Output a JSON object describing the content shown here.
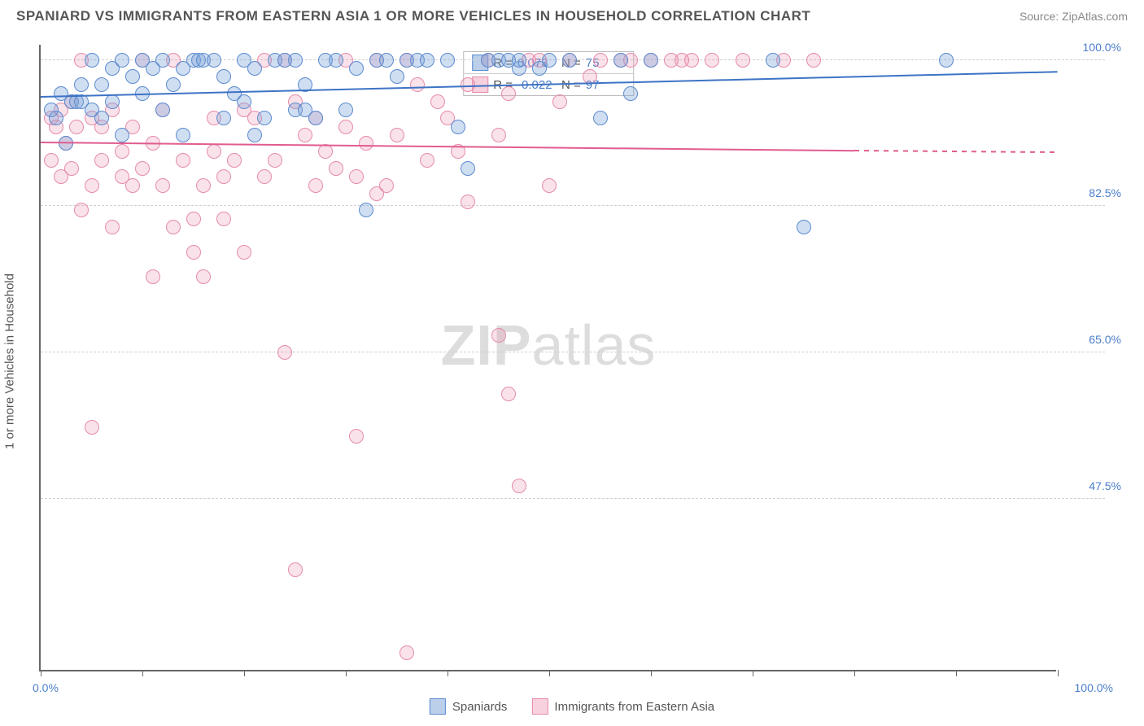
{
  "header": {
    "title": "SPANIARD VS IMMIGRANTS FROM EASTERN ASIA 1 OR MORE VEHICLES IN HOUSEHOLD CORRELATION CHART",
    "source": "Source: ZipAtlas.com"
  },
  "axes": {
    "y_label": "1 or more Vehicles in Household",
    "y_ticks": [
      {
        "value": 100.0,
        "label": "100.0%"
      },
      {
        "value": 82.5,
        "label": "82.5%"
      },
      {
        "value": 65.0,
        "label": "65.0%"
      },
      {
        "value": 47.5,
        "label": "47.5%"
      }
    ],
    "y_domain": [
      27,
      102
    ],
    "x_domain": [
      0,
      100
    ],
    "x_origin_label": "0.0%",
    "x_max_label": "100.0%",
    "x_tick_positions": [
      0,
      10,
      20,
      30,
      40,
      50,
      60,
      70,
      80,
      90,
      100
    ]
  },
  "watermark": {
    "zip": "ZIP",
    "atlas": "atlas"
  },
  "series": {
    "blue": {
      "label": "Spaniards",
      "R": "0.073",
      "N": "75",
      "color_fill": "rgba(120,160,215,0.35)",
      "color_stroke": "#5b8bcf",
      "trend": {
        "x1": 0,
        "y1": 95.5,
        "x2": 100,
        "y2": 98.5,
        "color": "#3d73c5"
      },
      "points": [
        [
          1,
          94
        ],
        [
          1.5,
          93
        ],
        [
          2,
          96
        ],
        [
          2.5,
          90
        ],
        [
          3,
          95
        ],
        [
          3.5,
          95
        ],
        [
          4,
          95
        ],
        [
          4,
          97
        ],
        [
          5,
          100
        ],
        [
          5,
          94
        ],
        [
          6,
          97
        ],
        [
          6,
          93
        ],
        [
          7,
          99
        ],
        [
          7,
          95
        ],
        [
          8,
          100
        ],
        [
          8,
          91
        ],
        [
          9,
          98
        ],
        [
          10,
          96
        ],
        [
          10,
          100
        ],
        [
          11,
          99
        ],
        [
          12,
          100
        ],
        [
          12,
          94
        ],
        [
          13,
          97
        ],
        [
          14,
          99
        ],
        [
          14,
          91
        ],
        [
          15,
          100
        ],
        [
          15.5,
          100
        ],
        [
          16,
          100
        ],
        [
          17,
          100
        ],
        [
          18,
          93
        ],
        [
          18,
          98
        ],
        [
          19,
          96
        ],
        [
          20,
          100
        ],
        [
          20,
          95
        ],
        [
          21,
          99
        ],
        [
          21,
          91
        ],
        [
          22,
          93
        ],
        [
          23,
          100
        ],
        [
          24,
          100
        ],
        [
          25,
          94
        ],
        [
          25,
          100
        ],
        [
          26,
          94
        ],
        [
          26,
          97
        ],
        [
          27,
          93
        ],
        [
          28,
          100
        ],
        [
          29,
          100
        ],
        [
          30,
          94
        ],
        [
          31,
          99
        ],
        [
          32,
          82
        ],
        [
          33,
          100
        ],
        [
          34,
          100
        ],
        [
          35,
          98
        ],
        [
          36,
          100
        ],
        [
          37,
          100
        ],
        [
          38,
          100
        ],
        [
          40,
          100
        ],
        [
          41,
          92
        ],
        [
          42,
          87
        ],
        [
          44,
          100
        ],
        [
          45,
          100
        ],
        [
          46,
          100
        ],
        [
          47,
          99
        ],
        [
          47,
          100
        ],
        [
          49,
          99
        ],
        [
          50,
          100
        ],
        [
          52,
          100
        ],
        [
          55,
          93
        ],
        [
          57,
          100
        ],
        [
          58,
          96
        ],
        [
          60,
          100
        ],
        [
          72,
          100
        ],
        [
          75,
          80
        ],
        [
          89,
          100
        ]
      ]
    },
    "pink": {
      "label": "Immigrants from Eastern Asia",
      "R": "-0.022",
      "N": "97",
      "color_fill": "rgba(235,140,170,0.25)",
      "color_stroke": "#e58bac",
      "trend_solid": {
        "x1": 0,
        "y1": 90,
        "x2": 80,
        "y2": 89,
        "color": "#e15c8f"
      },
      "trend_dashed": {
        "x1": 80,
        "y1": 89,
        "x2": 100,
        "y2": 88.8
      },
      "points": [
        [
          1,
          88
        ],
        [
          1,
          93
        ],
        [
          1.5,
          92
        ],
        [
          2,
          94
        ],
        [
          2,
          86
        ],
        [
          2.5,
          90
        ],
        [
          3,
          95
        ],
        [
          3,
          87
        ],
        [
          3.5,
          92
        ],
        [
          4,
          100
        ],
        [
          4,
          82
        ],
        [
          5,
          85
        ],
        [
          5,
          93
        ],
        [
          5,
          56
        ],
        [
          6,
          92
        ],
        [
          6,
          88
        ],
        [
          7,
          94
        ],
        [
          7,
          80
        ],
        [
          8,
          86
        ],
        [
          8,
          89
        ],
        [
          9,
          92
        ],
        [
          9,
          85
        ],
        [
          10,
          100
        ],
        [
          10,
          87
        ],
        [
          11,
          90
        ],
        [
          11,
          74
        ],
        [
          12,
          85
        ],
        [
          12,
          94
        ],
        [
          13,
          100
        ],
        [
          13,
          80
        ],
        [
          14,
          88
        ],
        [
          15,
          81
        ],
        [
          15,
          77
        ],
        [
          16,
          85
        ],
        [
          16,
          74
        ],
        [
          17,
          89
        ],
        [
          17,
          93
        ],
        [
          18,
          86
        ],
        [
          18,
          81
        ],
        [
          19,
          88
        ],
        [
          20,
          77
        ],
        [
          20,
          94
        ],
        [
          21,
          93
        ],
        [
          22,
          86
        ],
        [
          22,
          100
        ],
        [
          23,
          88
        ],
        [
          24,
          65
        ],
        [
          24,
          100
        ],
        [
          25,
          39
        ],
        [
          25,
          95
        ],
        [
          26,
          91
        ],
        [
          27,
          85
        ],
        [
          27,
          93
        ],
        [
          28,
          89
        ],
        [
          29,
          87
        ],
        [
          30,
          100
        ],
        [
          30,
          92
        ],
        [
          31,
          86
        ],
        [
          31,
          55
        ],
        [
          32,
          90
        ],
        [
          33,
          84
        ],
        [
          33,
          100
        ],
        [
          34,
          85
        ],
        [
          35,
          91
        ],
        [
          36,
          29
        ],
        [
          36,
          100
        ],
        [
          37,
          97
        ],
        [
          38,
          88
        ],
        [
          39,
          95
        ],
        [
          40,
          93
        ],
        [
          41,
          89
        ],
        [
          42,
          97
        ],
        [
          42,
          83
        ],
        [
          44,
          100
        ],
        [
          45,
          91
        ],
        [
          45,
          67
        ],
        [
          46,
          96
        ],
        [
          46,
          60
        ],
        [
          47,
          49
        ],
        [
          48,
          100
        ],
        [
          49,
          100
        ],
        [
          50,
          85
        ],
        [
          51,
          95
        ],
        [
          52,
          100
        ],
        [
          54,
          98
        ],
        [
          55,
          100
        ],
        [
          57,
          100
        ],
        [
          58,
          100
        ],
        [
          60,
          100
        ],
        [
          62,
          100
        ],
        [
          63,
          100
        ],
        [
          64,
          100
        ],
        [
          66,
          100
        ],
        [
          69,
          100
        ],
        [
          73,
          100
        ],
        [
          76,
          100
        ]
      ]
    }
  },
  "bottom_legend": {
    "blue": "Spaniards",
    "pink": "Immigrants from Eastern Asia"
  }
}
